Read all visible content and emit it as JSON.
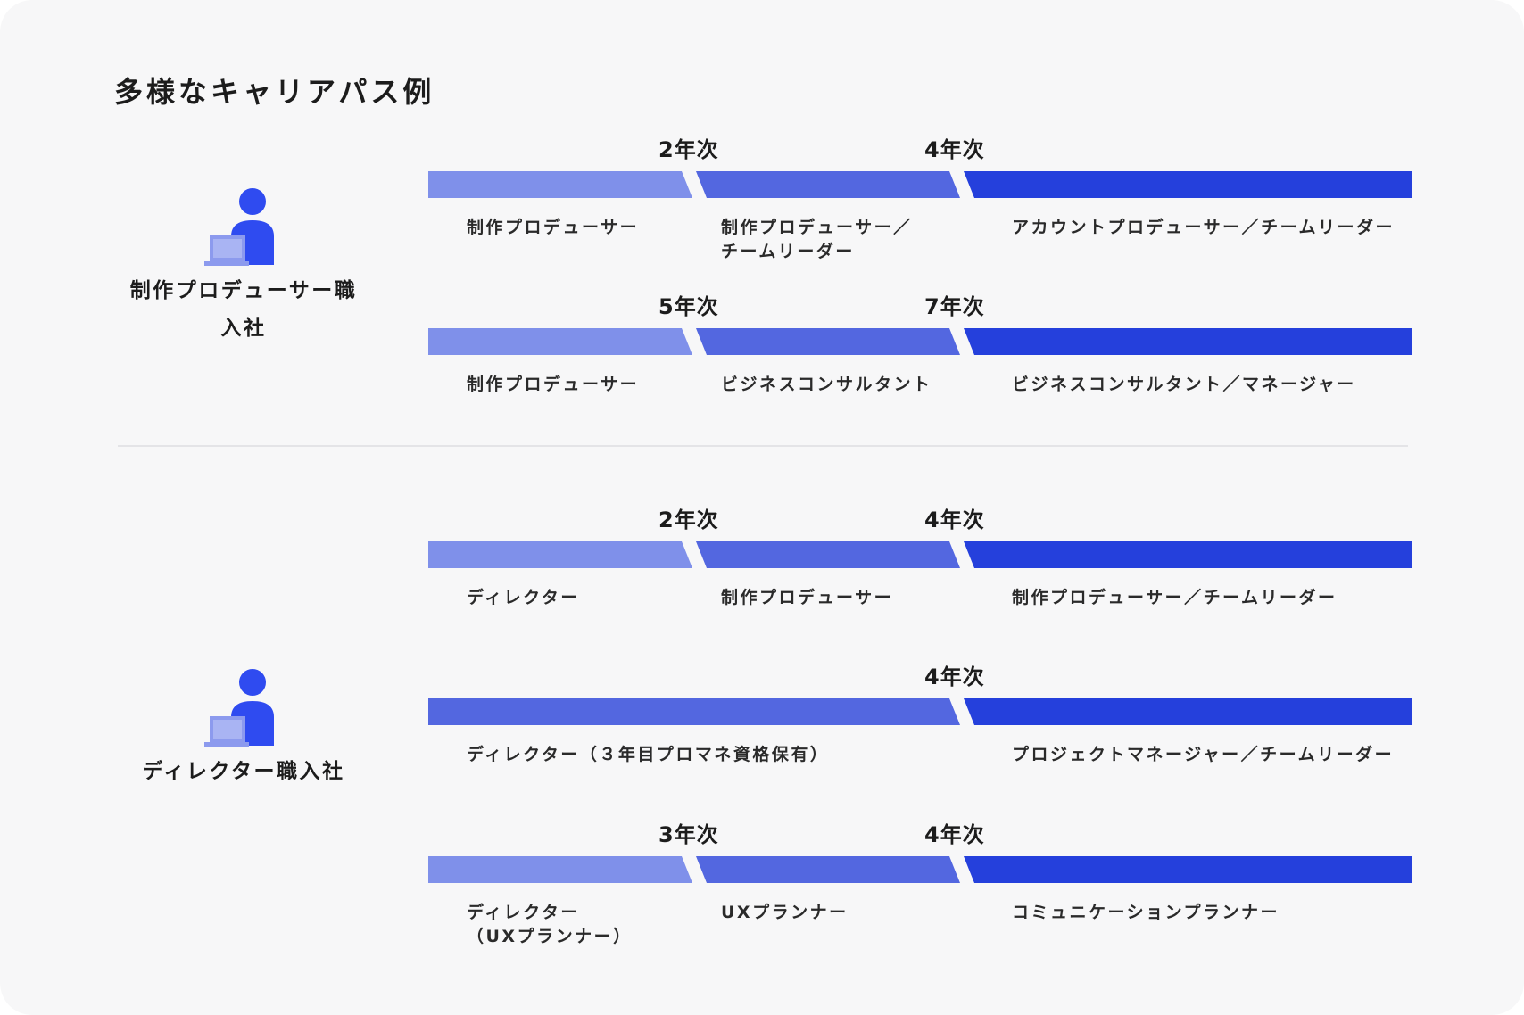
{
  "title": "多様なキャリアパス例",
  "colors": {
    "light": "#7f90ea",
    "mid": "#5367e0",
    "dark": "#2540dc",
    "icon": "#2f4bf0",
    "laptop": "#8c9aee"
  },
  "groups": [
    {
      "label": "制作プロデューサー職\n入社",
      "icon": "person-with-laptop-icon",
      "paths": [
        {
          "years": [
            "2年次",
            "4年次"
          ],
          "stages": [
            "制作プロデューサー",
            "制作プロデューサー／\nチームリーダー",
            "アカウントプロデューサー／チームリーダー"
          ]
        },
        {
          "years": [
            "5年次",
            "7年次"
          ],
          "stages": [
            "制作プロデューサー",
            "ビジネスコンサルタント",
            "ビジネスコンサルタント／マネージャー"
          ]
        }
      ]
    },
    {
      "label": "ディレクター職入社",
      "icon": "person-with-laptop-icon",
      "paths": [
        {
          "years": [
            "2年次",
            "4年次"
          ],
          "stages": [
            "ディレクター",
            "制作プロデューサー",
            "制作プロデューサー／チームリーダー"
          ]
        },
        {
          "years": [
            "4年次"
          ],
          "stages": [
            "ディレクター（３年目プロマネ資格保有）",
            "プロジェクトマネージャー／チームリーダー"
          ]
        },
        {
          "years": [
            "3年次",
            "4年次"
          ],
          "stages": [
            "ディレクター\n（UXプランナー）",
            "UXプランナー",
            "コミュニケーションプランナー"
          ]
        }
      ]
    }
  ]
}
